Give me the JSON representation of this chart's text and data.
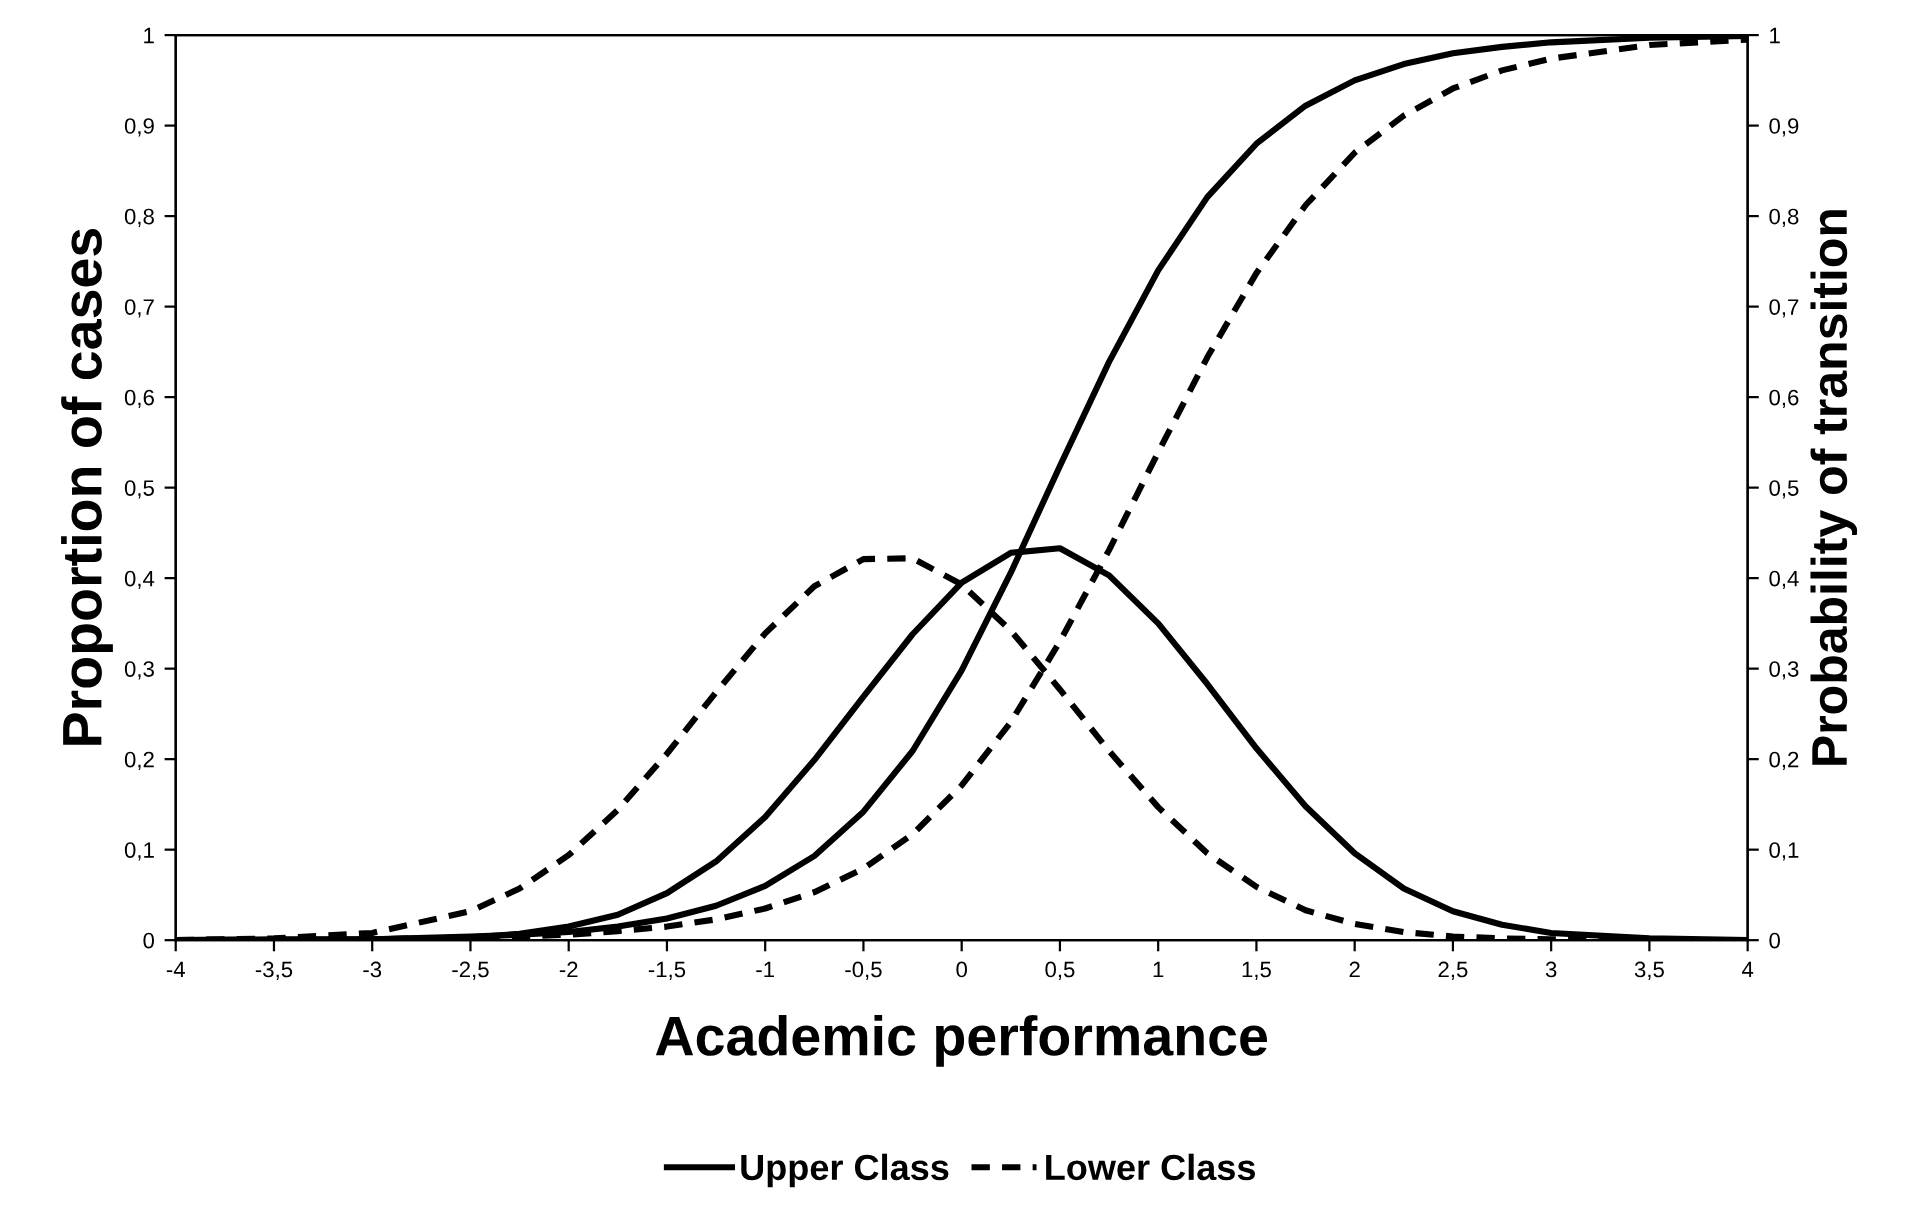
{
  "chart_data": {
    "type": "line",
    "xlabel": "Academic performance",
    "ylabel": "Proportion of cases",
    "y2label": "Probability of transition",
    "x": [
      -4,
      -3.5,
      -3,
      -2.5,
      -2.25,
      -2,
      -1.75,
      -1.5,
      -1.25,
      -1,
      -0.75,
      -0.5,
      -0.25,
      0,
      0.25,
      0.5,
      0.75,
      1,
      1.25,
      1.5,
      1.75,
      2,
      2.25,
      2.5,
      2.75,
      3,
      3.5,
      4
    ],
    "series": [
      {
        "name": "Upper Class",
        "color": "#000000",
        "line_style": "solid",
        "values": [
          0,
          0,
          0.001,
          0.003,
          0.007,
          0.015,
          0.028,
          0.052,
          0.087,
          0.136,
          0.199,
          0.269,
          0.338,
          0.395,
          0.428,
          0.433,
          0.403,
          0.35,
          0.283,
          0.212,
          0.148,
          0.096,
          0.057,
          0.032,
          0.017,
          0.008,
          0.002,
          0
        ]
      },
      {
        "name": "Lower Class",
        "color": "#000000",
        "line_style": "dashed",
        "values": [
          0,
          0.002,
          0.008,
          0.032,
          0.057,
          0.094,
          0.144,
          0.206,
          0.274,
          0.339,
          0.391,
          0.421,
          0.422,
          0.393,
          0.342,
          0.277,
          0.209,
          0.147,
          0.096,
          0.059,
          0.033,
          0.018,
          0.009,
          0.004,
          0.002,
          0.001,
          0,
          0
        ]
      },
      {
        "color": "#000000",
        "line_style": "solid",
        "values": [
          0,
          0.001,
          0.001,
          0.004,
          0.006,
          0.009,
          0.015,
          0.024,
          0.038,
          0.06,
          0.093,
          0.142,
          0.209,
          0.298,
          0.406,
          0.524,
          0.639,
          0.74,
          0.821,
          0.88,
          0.922,
          0.95,
          0.968,
          0.98,
          0.987,
          0.992,
          0.997,
          0.999
        ]
      },
      {
        "color": "#000000",
        "line_style": "dashed",
        "values": [
          0,
          0.001,
          0.001,
          0.003,
          0.004,
          0.006,
          0.01,
          0.015,
          0.023,
          0.035,
          0.053,
          0.079,
          0.117,
          0.171,
          0.241,
          0.33,
          0.431,
          0.539,
          0.644,
          0.737,
          0.812,
          0.87,
          0.911,
          0.941,
          0.961,
          0.974,
          0.989,
          0.995
        ]
      }
    ],
    "xlim": [
      -4,
      4
    ],
    "xticks": [
      -4,
      {
        "value": -3.5,
        "label": "-3,5"
      },
      -3,
      {
        "value": -2.5,
        "label": "-2,5"
      },
      -2,
      {
        "value": -1.5,
        "label": "-1,5"
      },
      -1,
      {
        "value": -0.5,
        "label": "-0,5"
      },
      0,
      {
        "value": 0.5,
        "label": "0,5"
      },
      1,
      {
        "value": 1.5,
        "label": "1,5"
      },
      2,
      {
        "value": 2.5,
        "label": "2,5"
      },
      3,
      {
        "value": 3.5,
        "label": "3,5"
      },
      4
    ],
    "ylim": [
      0,
      1
    ],
    "yticks": [
      0,
      {
        "value": 0.1,
        "label": "0,1"
      },
      {
        "value": 0.2,
        "label": "0,2"
      },
      {
        "value": 0.3,
        "label": "0,3"
      },
      {
        "value": 0.4,
        "label": "0,4"
      },
      {
        "value": 0.5,
        "label": "0,5"
      },
      {
        "value": 0.6,
        "label": "0,6"
      },
      {
        "value": 0.7,
        "label": "0,7"
      },
      {
        "value": 0.8,
        "label": "0,8"
      },
      {
        "value": 0.9,
        "label": "0,9"
      },
      1
    ],
    "y2lim": [
      0,
      1
    ],
    "y2ticks": [
      0,
      {
        "value": 0.1,
        "label": "0,1"
      },
      {
        "value": 0.2,
        "label": "0,2"
      },
      {
        "value": 0.3,
        "label": "0,3"
      },
      {
        "value": 0.4,
        "label": "0,4"
      },
      {
        "value": 0.5,
        "label": "0,5"
      },
      {
        "value": 0.6,
        "label": "0,6"
      },
      {
        "value": 0.7,
        "label": "0,7"
      },
      {
        "value": 0.8,
        "label": "0,8"
      },
      {
        "value": 0.9,
        "label": "0,9"
      },
      1
    ],
    "grid": false,
    "legend": "bottom",
    "marker": "none"
  }
}
